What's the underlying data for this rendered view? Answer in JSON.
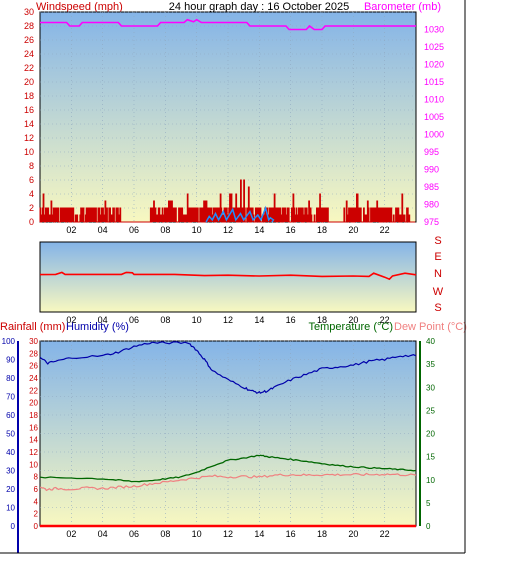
{
  "header": {
    "left_label": "Windspeed (mph)",
    "center_title": "24 hour graph day : 16 October 2025",
    "right_label": "Barometer (mb)"
  },
  "middle_header": {
    "rainfall_label": "Rainfall (mm)",
    "humidity_label": "Humidity (%)",
    "temperature_label": "Temperature (°C)",
    "dewpoint_label": "Dew Point (°C)"
  },
  "colors": {
    "windspeed": "#cc0000",
    "gust": "#1e8fff",
    "barometer": "#ff00ff",
    "direction": "#ff0000",
    "humidity": "#0000aa",
    "temperature": "#006600",
    "dewpoint": "#f08080",
    "rainfall": "#ff0000",
    "sky_top": "#84b4e8",
    "sky_bottom": "#f8f8c0"
  },
  "chart_data": [
    {
      "type": "line",
      "name": "wind-barometer",
      "x_ticks": [
        "02",
        "04",
        "06",
        "08",
        "10",
        "12",
        "14",
        "16",
        "18",
        "20",
        "22"
      ],
      "y_left_ticks": [
        "0",
        "2",
        "4",
        "6",
        "8",
        "10",
        "12",
        "14",
        "16",
        "18",
        "20",
        "22",
        "24",
        "26",
        "28",
        "30"
      ],
      "y_right_ticks": [
        "975",
        "980",
        "985",
        "990",
        "995",
        "1000",
        "1005",
        "1010",
        "1015",
        "1020",
        "1025",
        "1030"
      ],
      "ylim_left": [
        0,
        30
      ],
      "ylim_right": [
        975,
        1035
      ],
      "barometer": [
        [
          0,
          1032
        ],
        [
          1.7,
          1032
        ],
        [
          1.9,
          1031
        ],
        [
          2.5,
          1031
        ],
        [
          2.7,
          1032
        ],
        [
          5,
          1032
        ],
        [
          5.2,
          1031
        ],
        [
          7.5,
          1031
        ],
        [
          7.7,
          1032
        ],
        [
          9.2,
          1032
        ],
        [
          9.4,
          1032.8
        ],
        [
          9.8,
          1032.2
        ],
        [
          10,
          1032.8
        ],
        [
          10.3,
          1032
        ],
        [
          13.2,
          1032
        ],
        [
          13.4,
          1031
        ],
        [
          15.7,
          1031
        ],
        [
          15.9,
          1030
        ],
        [
          17,
          1030
        ],
        [
          17.2,
          1031
        ],
        [
          17.5,
          1030
        ],
        [
          18,
          1030
        ],
        [
          18.2,
          1031
        ],
        [
          24,
          1031
        ]
      ],
      "windspeed_peaks": [
        [
          0.2,
          4
        ],
        [
          0.6,
          3
        ],
        [
          1.2,
          4
        ],
        [
          2.2,
          4
        ],
        [
          3.1,
          3
        ],
        [
          4.2,
          3
        ],
        [
          4.9,
          3
        ],
        [
          7.3,
          3
        ],
        [
          8.3,
          3
        ],
        [
          9.0,
          4
        ],
        [
          9.5,
          4
        ],
        [
          10.5,
          3
        ],
        [
          11.0,
          5
        ],
        [
          11.6,
          4
        ],
        [
          12.2,
          4
        ],
        [
          12.5,
          4
        ],
        [
          12.9,
          6
        ],
        [
          13.2,
          5
        ],
        [
          13.7,
          5
        ],
        [
          14.2,
          5
        ],
        [
          14.6,
          4
        ],
        [
          15.0,
          4
        ],
        [
          15.6,
          4
        ],
        [
          16.2,
          4
        ],
        [
          16.7,
          4
        ],
        [
          17.2,
          3
        ],
        [
          17.8,
          4
        ],
        [
          19.5,
          3
        ],
        [
          20.2,
          4
        ],
        [
          20.8,
          3
        ],
        [
          21.4,
          3
        ],
        [
          22.3,
          3
        ],
        [
          23.1,
          4
        ]
      ],
      "windspeed_gaps": [
        [
          5.1,
          7.0
        ],
        [
          18.4,
          19.3
        ],
        [
          23.6,
          24
        ]
      ],
      "gust_peaks": [
        [
          10.8,
          0.8
        ],
        [
          11.2,
          1.2
        ],
        [
          11.7,
          1.5
        ],
        [
          12.3,
          1.8
        ],
        [
          12.8,
          1.2
        ],
        [
          13.4,
          1.5
        ],
        [
          13.9,
          1.0
        ],
        [
          14.4,
          2.0
        ],
        [
          14.7,
          0.6
        ]
      ]
    },
    {
      "type": "line",
      "name": "wind-direction",
      "x_ticks": [
        "02",
        "04",
        "06",
        "08",
        "10",
        "12",
        "14",
        "16",
        "18",
        "20",
        "22"
      ],
      "direction_labels": [
        "S",
        "E",
        "N",
        "W",
        "S"
      ],
      "direction_values": [
        [
          0,
          0.15
        ],
        [
          1.0,
          0.1
        ],
        [
          1.4,
          -0.4
        ],
        [
          1.6,
          0.1
        ],
        [
          5.2,
          0.1
        ],
        [
          5.5,
          -0.4
        ],
        [
          5.9,
          -0.3
        ],
        [
          6.0,
          0.1
        ],
        [
          8.6,
          0.1
        ],
        [
          10.5,
          0.4
        ],
        [
          12.0,
          0.3
        ],
        [
          14.0,
          0.5
        ],
        [
          16.0,
          0.3
        ],
        [
          18.0,
          0.6
        ],
        [
          20.0,
          0.5
        ],
        [
          21.0,
          0.6
        ],
        [
          21.3,
          -0.2
        ],
        [
          22.0,
          0.8
        ],
        [
          22.3,
          1.3
        ],
        [
          22.5,
          0.5
        ],
        [
          23.3,
          -0.2
        ],
        [
          24,
          0.2
        ]
      ]
    },
    {
      "type": "line",
      "name": "humidity-temperature",
      "x_ticks": [
        "02",
        "04",
        "06",
        "08",
        "10",
        "12",
        "14",
        "16",
        "18",
        "20",
        "22"
      ],
      "humidity_ticks": [
        "0",
        "10",
        "20",
        "30",
        "40",
        "50",
        "60",
        "70",
        "80",
        "90",
        "100"
      ],
      "rainfall_ticks": [
        "0",
        "2",
        "4",
        "6",
        "8",
        "10",
        "12",
        "14",
        "16",
        "18",
        "20",
        "22",
        "24",
        "26",
        "28",
        "30"
      ],
      "temperature_ticks": [
        "0",
        "5",
        "10",
        "15",
        "20",
        "25",
        "30",
        "35",
        "40"
      ],
      "humidity_lim": [
        0,
        100
      ],
      "rainfall_lim": [
        0,
        30
      ],
      "temperature_lim": [
        0,
        40
      ],
      "humidity": [
        [
          0,
          91
        ],
        [
          0.5,
          88
        ],
        [
          1.0,
          89
        ],
        [
          2.0,
          91
        ],
        [
          4.0,
          92
        ],
        [
          5.0,
          94
        ],
        [
          6.0,
          97
        ],
        [
          7.0,
          99
        ],
        [
          8.0,
          99
        ],
        [
          9.5,
          99
        ],
        [
          10.0,
          95
        ],
        [
          10.5,
          90
        ],
        [
          11.0,
          84
        ],
        [
          12.0,
          79
        ],
        [
          13.0,
          75
        ],
        [
          13.5,
          73
        ],
        [
          14.0,
          72
        ],
        [
          14.5,
          73
        ],
        [
          15.0,
          75
        ],
        [
          16.0,
          79
        ],
        [
          17.0,
          82
        ],
        [
          18.0,
          85
        ],
        [
          19.0,
          86
        ],
        [
          20.0,
          87
        ],
        [
          21.0,
          89
        ],
        [
          22.0,
          90
        ],
        [
          23.0,
          92
        ],
        [
          24,
          92
        ]
      ],
      "temperature": [
        [
          0,
          10.5
        ],
        [
          2.0,
          10.4
        ],
        [
          4.0,
          10.2
        ],
        [
          5.0,
          9.9
        ],
        [
          6.0,
          9.6
        ],
        [
          7.0,
          9.8
        ],
        [
          8.0,
          10.2
        ],
        [
          9.0,
          10.6
        ],
        [
          10.0,
          11.6
        ],
        [
          11.0,
          13.0
        ],
        [
          12.0,
          14.2
        ],
        [
          13.0,
          14.7
        ],
        [
          14.0,
          15.3
        ],
        [
          14.5,
          15.0
        ],
        [
          15.0,
          14.8
        ],
        [
          16.0,
          14.4
        ],
        [
          17.0,
          14.0
        ],
        [
          18.0,
          13.5
        ],
        [
          19.0,
          13.1
        ],
        [
          20.0,
          12.8
        ],
        [
          21.0,
          12.6
        ],
        [
          22.0,
          12.4
        ],
        [
          23.0,
          12.2
        ],
        [
          24,
          12.0
        ]
      ],
      "dewpoint": [
        [
          0,
          8.5
        ],
        [
          0.4,
          7.9
        ],
        [
          1.0,
          8.1
        ],
        [
          2.0,
          8.0
        ],
        [
          3.0,
          8.2
        ],
        [
          4.0,
          8.1
        ],
        [
          5.0,
          8.4
        ],
        [
          6.0,
          8.6
        ],
        [
          7.0,
          9.1
        ],
        [
          8.0,
          9.5
        ],
        [
          9.0,
          10.0
        ],
        [
          10.0,
          10.4
        ],
        [
          11.0,
          10.8
        ],
        [
          12.0,
          10.6
        ],
        [
          13.0,
          10.7
        ],
        [
          14.0,
          10.6
        ],
        [
          15.0,
          11.0
        ],
        [
          16.0,
          11.1
        ],
        [
          17.0,
          11.0
        ],
        [
          18.0,
          11.1
        ],
        [
          19.0,
          11.1
        ],
        [
          20.0,
          11.1
        ],
        [
          21.0,
          11.1
        ],
        [
          22.0,
          11.2
        ],
        [
          23.0,
          11.1
        ],
        [
          24,
          11.0
        ]
      ],
      "rainfall": [
        [
          0,
          0
        ],
        [
          24,
          0
        ]
      ]
    }
  ]
}
